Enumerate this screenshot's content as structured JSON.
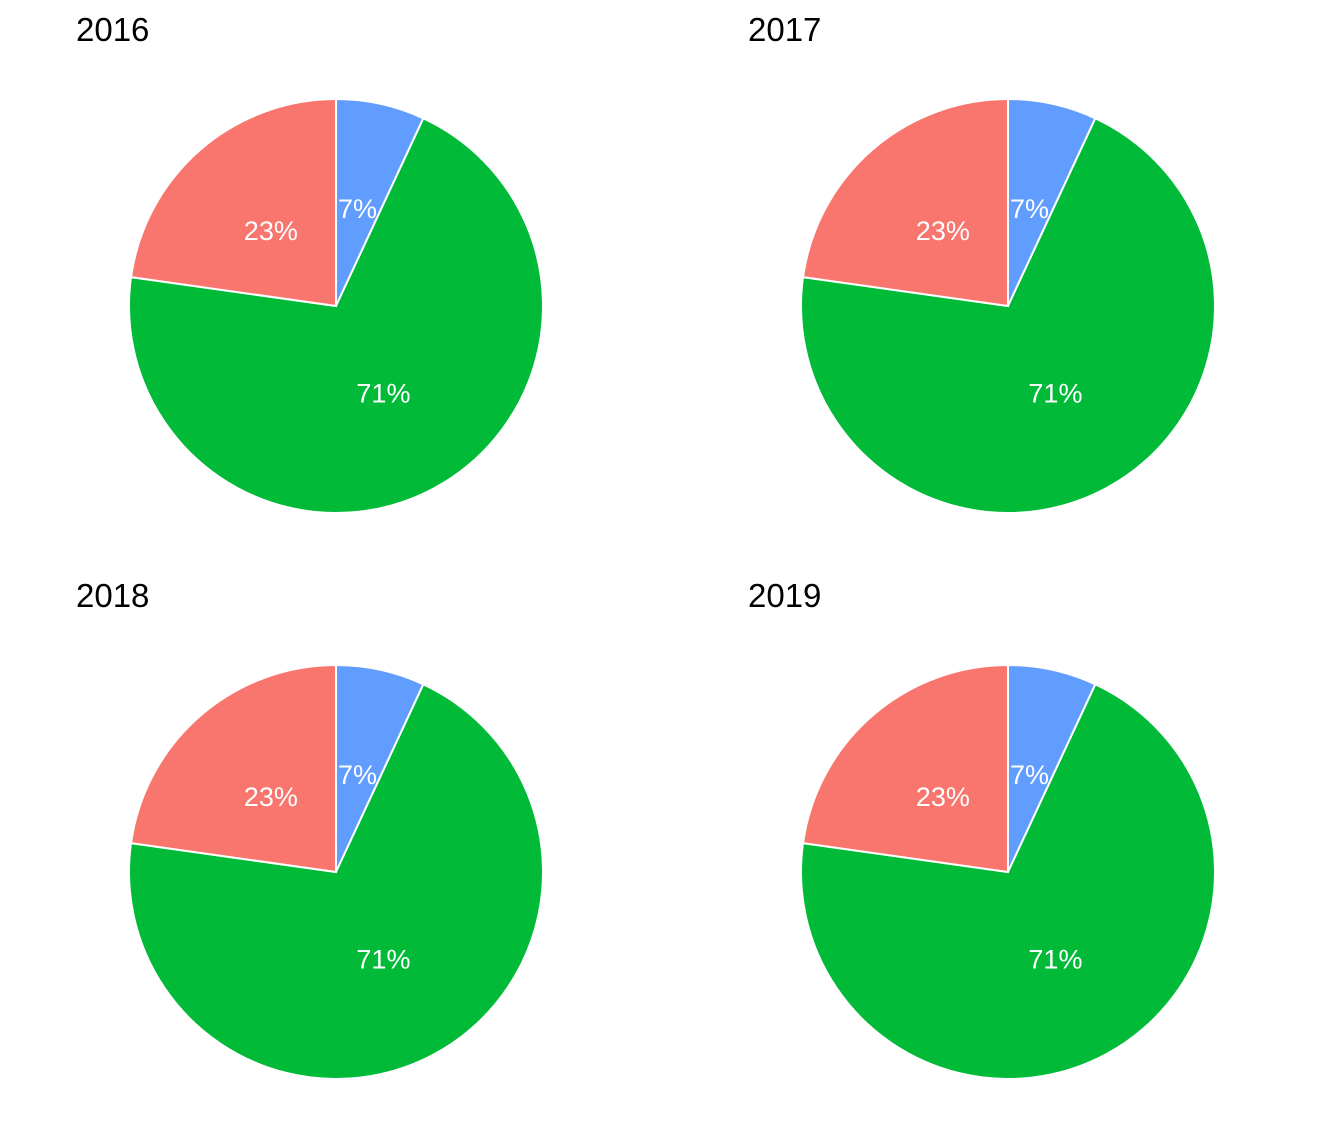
{
  "chart_data": [
    {
      "type": "pie",
      "title": "2016",
      "slices": [
        {
          "value": 7,
          "label": "7%",
          "color": "#619CFF"
        },
        {
          "value": 71,
          "label": "71%",
          "color": "#00BA38"
        },
        {
          "value": 23,
          "label": "23%",
          "color": "#F8766D"
        }
      ]
    },
    {
      "type": "pie",
      "title": "2017",
      "slices": [
        {
          "value": 7,
          "label": "7%",
          "color": "#619CFF"
        },
        {
          "value": 71,
          "label": "71%",
          "color": "#00BA38"
        },
        {
          "value": 23,
          "label": "23%",
          "color": "#F8766D"
        }
      ]
    },
    {
      "type": "pie",
      "title": "2018",
      "slices": [
        {
          "value": 7,
          "label": "7%",
          "color": "#619CFF"
        },
        {
          "value": 71,
          "label": "71%",
          "color": "#00BA38"
        },
        {
          "value": 23,
          "label": "23%",
          "color": "#F8766D"
        }
      ]
    },
    {
      "type": "pie",
      "title": "2019",
      "slices": [
        {
          "value": 7,
          "label": "7%",
          "color": "#619CFF"
        },
        {
          "value": 71,
          "label": "71%",
          "color": "#00BA38"
        },
        {
          "value": 23,
          "label": "23%",
          "color": "#F8766D"
        }
      ]
    }
  ]
}
